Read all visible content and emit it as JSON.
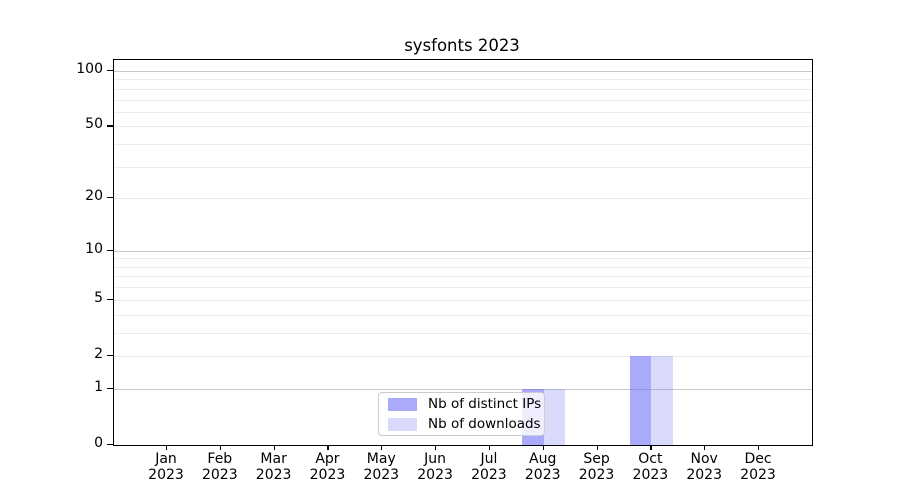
{
  "chart_data": {
    "type": "bar",
    "title": "sysfonts 2023",
    "months": [
      "Jan",
      "Feb",
      "Mar",
      "Apr",
      "May",
      "Jun",
      "Jul",
      "Aug",
      "Sep",
      "Oct",
      "Nov",
      "Dec"
    ],
    "year": "2023",
    "series": [
      {
        "name": "Nb of distinct IPs",
        "color": "#6565f5",
        "alpha": 0.55,
        "values": [
          0,
          0,
          0,
          0,
          0,
          0,
          0,
          1,
          0,
          2,
          0,
          0
        ]
      },
      {
        "name": "Nb of downloads",
        "color": "#6565f5",
        "alpha": 0.24,
        "values": [
          0,
          0,
          0,
          0,
          0,
          0,
          0,
          1,
          0,
          2,
          0,
          0
        ]
      }
    ],
    "y_axis": {
      "scale": "log1p",
      "max": 100,
      "tick_labels": [
        0,
        1,
        2,
        5,
        10,
        20,
        50,
        100
      ],
      "major_gridlines": [
        1,
        10,
        100
      ],
      "minor_gridlines": [
        2,
        3,
        4,
        5,
        6,
        7,
        8,
        9,
        20,
        30,
        40,
        50,
        60,
        70,
        80,
        90
      ],
      "major_grid_color": "#c9c9c9",
      "minor_grid_color": "#ececec"
    },
    "legend": {
      "position": "lower center",
      "frame_alpha": 0.8
    },
    "grid": true
  }
}
